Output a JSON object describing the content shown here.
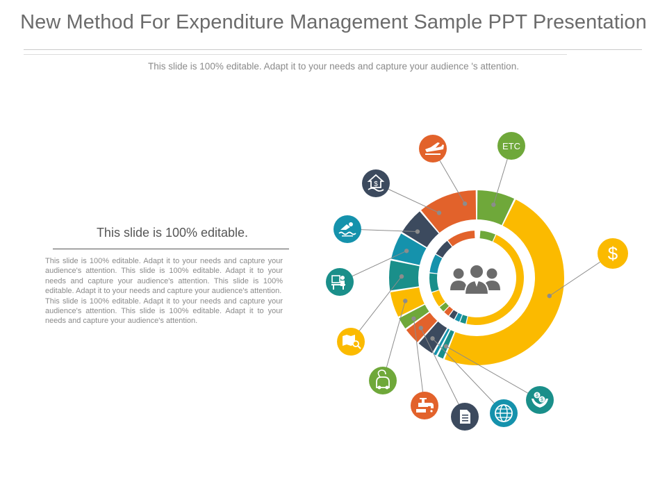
{
  "slide": {
    "title": "New Method For Expenditure Management Sample PPT Presentation",
    "subtitle": "This slide is 100% editable. Adapt it to your needs and capture your  audience 's attention."
  },
  "text_block": {
    "heading": "This slide is 100% editable.",
    "paragraphs": [
      "This slide is 100% editable. Adapt it to your needs and capture your audience's attention. This slide is 100% editable. Adapt it to your needs and capture your audience's attention. This slide is 100% editable. Adapt it to your needs and capture your audience's attention.",
      "This slide is 100% editable. Adapt it to your needs and capture your audience's attention. This slide is 100% editable. Adapt it to your needs and capture your audience's attention."
    ]
  },
  "colors": {
    "yellow": "#FBBA00",
    "green": "#6FA83A",
    "orange": "#E2622B",
    "navy": "#3C4A5E",
    "teal": "#1A8F8A",
    "blue": "#1592AC",
    "center_icon": "#6b6b6b"
  },
  "center_icon": "people-group-icon",
  "categories": [
    {
      "id": "etc",
      "icon": "etc-label-icon",
      "label": "ETC",
      "color": "green"
    },
    {
      "id": "dollar",
      "icon": "dollar-icon",
      "label": "$",
      "color": "yellow"
    },
    {
      "id": "hand-coins",
      "icon": "hand-coins-icon",
      "color": "teal"
    },
    {
      "id": "globe",
      "icon": "globe-icon",
      "color": "blue"
    },
    {
      "id": "document",
      "icon": "document-icon",
      "color": "navy"
    },
    {
      "id": "faucet",
      "icon": "faucet-icon",
      "color": "orange"
    },
    {
      "id": "vacuum",
      "icon": "vacuum-icon",
      "color": "green"
    },
    {
      "id": "map-search",
      "icon": "map-search-icon",
      "color": "yellow"
    },
    {
      "id": "office-desk",
      "icon": "office-desk-icon",
      "color": "teal"
    },
    {
      "id": "swimmer",
      "icon": "swimmer-icon",
      "color": "blue"
    },
    {
      "id": "house-dollar",
      "icon": "house-dollar-icon",
      "color": "navy"
    },
    {
      "id": "airplane",
      "icon": "airplane-icon",
      "color": "orange"
    }
  ]
}
